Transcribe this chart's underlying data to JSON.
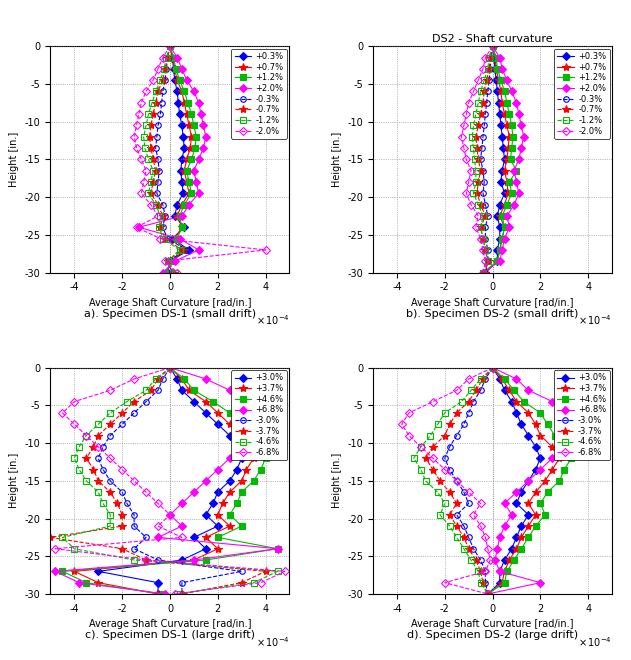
{
  "title_b": "DS2 - Shaft curvature",
  "xlabel": "Average Shaft Curvature [rad/in.]",
  "ylabel": "Height [in.]",
  "xlim": [
    -5,
    5
  ],
  "ylim": [
    -30,
    0
  ],
  "xticks": [
    -4,
    -2,
    0,
    2,
    4
  ],
  "yticks": [
    0,
    -5,
    -10,
    -15,
    -20,
    -25,
    -30
  ],
  "xscale_label": "x 10⁻⁴",
  "captions": [
    "a). Specimen DS-1 (small drift)",
    "b). Specimen DS-2 (small drift)",
    "c). Specimen DS-1 (large drift)",
    "d). Specimen DS-2 (large drift)"
  ],
  "colors": {
    "blue_filled": "#0000FF",
    "red_filled": "#FF0000",
    "green_filled": "#00CC00",
    "magenta_filled": "#FF00FF",
    "blue_open": "#0000FF",
    "red_open": "#FF0000",
    "green_open": "#00CC00",
    "magenta_open": "#FF00FF"
  },
  "small_drift_legends": [
    "+0.3%",
    "+0.7%",
    "+1.2%",
    "+2.0%",
    "-0.3%",
    "-0.7%",
    "-1.2%",
    "-2.0%"
  ],
  "large_drift_legends": [
    "+3.0%",
    "+3.7%",
    "+4.6%",
    "+6.8%",
    "-3.0%",
    "-3.7%",
    "-4.6%",
    "-6.8%"
  ],
  "DS1_small": {
    "heights": [
      0,
      -1.5,
      -3,
      -4.5,
      -6,
      -7.5,
      -9,
      -10.5,
      -12,
      -13.5,
      -15,
      -16.5,
      -18,
      -19.5,
      -21,
      -22.5,
      -24,
      -25.5,
      -27,
      -28.5,
      -30
    ],
    "p03": [
      0,
      0.1,
      0.15,
      0.2,
      0.3,
      0.35,
      0.4,
      0.5,
      0.55,
      0.6,
      0.5,
      0.45,
      0.5,
      0.55,
      0.3,
      0.2,
      0.6,
      0.1,
      0.8,
      0.0,
      -0.1
    ],
    "p07": [
      0,
      0.1,
      0.2,
      0.3,
      0.5,
      0.6,
      0.7,
      0.8,
      0.9,
      0.85,
      0.7,
      0.6,
      0.7,
      0.8,
      0.5,
      0.3,
      0.5,
      0.2,
      0.6,
      0.1,
      -0.15
    ],
    "p12": [
      0,
      0.15,
      0.25,
      0.4,
      0.6,
      0.75,
      0.9,
      1.0,
      1.1,
      1.05,
      0.9,
      0.7,
      0.8,
      0.9,
      0.6,
      0.4,
      0.5,
      0.3,
      0.5,
      0.1,
      -0.2
    ],
    "p20": [
      0,
      0.3,
      0.5,
      0.7,
      1.0,
      1.2,
      1.3,
      1.4,
      1.5,
      1.4,
      1.2,
      1.0,
      1.1,
      1.2,
      0.8,
      0.5,
      -1.3,
      0.4,
      1.2,
      0.2,
      -0.3
    ],
    "m03": [
      0,
      -0.1,
      -0.15,
      -0.2,
      -0.3,
      -0.35,
      -0.4,
      -0.5,
      -0.55,
      -0.6,
      -0.5,
      -0.45,
      -0.5,
      -0.55,
      -0.3,
      -0.2,
      -0.3,
      -0.1,
      0.7,
      -0.1,
      0.1
    ],
    "m07": [
      0,
      -0.1,
      -0.2,
      -0.3,
      -0.5,
      -0.6,
      -0.7,
      -0.8,
      -0.85,
      -0.8,
      -0.7,
      -0.6,
      -0.7,
      -0.8,
      -0.5,
      -0.3,
      -0.4,
      -0.2,
      0.5,
      -0.1,
      0.15
    ],
    "m12": [
      0,
      -0.15,
      -0.25,
      -0.4,
      -0.6,
      -0.75,
      -0.9,
      -1.0,
      -1.1,
      -1.05,
      -0.9,
      -0.7,
      -0.8,
      -0.9,
      -0.6,
      -0.4,
      -0.45,
      -0.3,
      0.4,
      -0.1,
      0.2
    ],
    "m20": [
      0,
      -0.3,
      -0.5,
      -0.7,
      -1.0,
      -1.2,
      -1.3,
      -1.4,
      -1.5,
      -1.4,
      -1.2,
      -1.0,
      -1.1,
      -1.2,
      -0.8,
      -0.5,
      -1.4,
      -0.4,
      4.0,
      -0.2,
      0.3
    ]
  },
  "DS2_small": {
    "heights": [
      0,
      -1.5,
      -3,
      -4.5,
      -6,
      -7.5,
      -9,
      -10.5,
      -12,
      -13.5,
      -15,
      -16.5,
      -18,
      -19.5,
      -21,
      -22.5,
      -24,
      -25.5,
      -27,
      -28.5,
      -30
    ],
    "p03": [
      0,
      0.05,
      0.1,
      0.15,
      0.2,
      0.25,
      0.3,
      0.35,
      0.4,
      0.45,
      0.5,
      0.4,
      0.35,
      0.5,
      0.3,
      0.2,
      0.3,
      0.3,
      0.2,
      0.2,
      -0.3
    ],
    "p07": [
      0,
      0.1,
      0.15,
      0.25,
      0.35,
      0.4,
      0.5,
      0.6,
      0.7,
      0.65,
      0.6,
      0.5,
      0.6,
      0.65,
      0.5,
      0.3,
      0.5,
      0.4,
      0.3,
      0.2,
      -0.3
    ],
    "p12": [
      0,
      0.15,
      0.2,
      0.35,
      0.5,
      0.6,
      0.7,
      0.8,
      0.85,
      0.8,
      0.75,
      1.0,
      0.7,
      0.8,
      0.6,
      0.4,
      0.5,
      0.4,
      0.3,
      0.2,
      -0.4
    ],
    "p20": [
      0,
      0.3,
      0.4,
      0.6,
      0.8,
      1.0,
      1.1,
      1.2,
      1.3,
      1.2,
      1.1,
      0.9,
      1.0,
      1.1,
      0.9,
      0.6,
      0.7,
      0.5,
      0.4,
      0.3,
      -0.4
    ],
    "m03": [
      0,
      -0.05,
      -0.1,
      -0.15,
      -0.2,
      -0.25,
      -0.3,
      -0.35,
      -0.4,
      -0.45,
      -0.5,
      -0.4,
      -0.35,
      -0.4,
      -0.3,
      -0.2,
      -0.3,
      -0.3,
      -0.2,
      -0.2,
      -0.3
    ],
    "m07": [
      0,
      -0.1,
      -0.15,
      -0.25,
      -0.35,
      -0.4,
      -0.5,
      -0.6,
      -0.7,
      -0.65,
      -0.6,
      -0.5,
      -0.6,
      -0.65,
      -0.5,
      -0.3,
      -0.5,
      -0.4,
      -0.3,
      -0.2,
      -0.3
    ],
    "m12": [
      0,
      -0.15,
      -0.2,
      -0.35,
      -0.5,
      -0.6,
      -0.7,
      -0.8,
      -0.85,
      -0.8,
      -0.75,
      -0.7,
      -0.7,
      -0.8,
      -0.6,
      -0.4,
      -0.5,
      -0.4,
      -0.3,
      -0.2,
      -0.4
    ],
    "m20": [
      0,
      -0.3,
      -0.4,
      -0.6,
      -0.8,
      -1.0,
      -1.1,
      -1.2,
      -1.3,
      -1.2,
      -1.1,
      -0.9,
      -1.0,
      -1.1,
      -0.9,
      -0.6,
      -0.7,
      -0.5,
      -0.4,
      -0.3,
      -0.4
    ]
  },
  "DS1_large": {
    "heights": [
      0,
      -1.5,
      -3,
      -4.5,
      -6,
      -7.5,
      -9,
      -10.5,
      -12,
      -13.5,
      -15,
      -16.5,
      -18,
      -19.5,
      -21,
      -22.5,
      -24,
      -25.5,
      -27,
      -28.5,
      -30
    ],
    "p30": [
      0,
      0.3,
      0.5,
      1.0,
      1.5,
      2.0,
      2.5,
      2.8,
      3.0,
      2.8,
      2.5,
      2.0,
      1.8,
      1.5,
      2.0,
      1.0,
      1.5,
      0.5,
      -3.0,
      -0.5,
      -0.5
    ],
    "p37": [
      0,
      0.5,
      0.8,
      1.5,
      2.0,
      2.5,
      3.0,
      3.2,
      3.5,
      3.2,
      3.0,
      2.5,
      2.2,
      2.0,
      2.5,
      1.5,
      2.0,
      1.0,
      -4.0,
      -3.0,
      -0.5
    ],
    "p46": [
      0,
      0.6,
      1.0,
      1.8,
      2.5,
      3.0,
      3.5,
      3.8,
      4.0,
      3.8,
      3.5,
      3.0,
      2.8,
      2.5,
      3.0,
      2.0,
      4.5,
      1.5,
      -4.5,
      -3.5,
      -0.3
    ],
    "p68": [
      0,
      1.5,
      2.5,
      4.0,
      4.5,
      4.0,
      3.5,
      3.0,
      2.5,
      2.0,
      1.5,
      1.0,
      0.5,
      0.0,
      0.5,
      -0.5,
      4.5,
      1.0,
      -4.8,
      -3.8,
      -0.2
    ],
    "m30": [
      0,
      -0.3,
      -0.5,
      -1.0,
      -1.5,
      -2.0,
      -2.5,
      -2.8,
      -3.0,
      -2.8,
      -2.5,
      -2.0,
      -1.8,
      -1.5,
      -1.5,
      -1.0,
      -1.5,
      -0.5,
      3.0,
      0.5,
      0.5
    ],
    "m37": [
      0,
      -0.5,
      -0.8,
      -1.5,
      -2.0,
      -2.5,
      -3.0,
      -3.2,
      -3.5,
      -3.2,
      -3.0,
      -2.5,
      -2.2,
      -2.0,
      -2.0,
      -5.0,
      -2.0,
      -1.0,
      4.0,
      3.0,
      0.5
    ],
    "m46": [
      0,
      -0.6,
      -1.0,
      -1.8,
      -2.5,
      -3.0,
      -3.5,
      -3.8,
      -4.0,
      -3.8,
      -3.5,
      -3.0,
      -2.8,
      -2.5,
      -2.5,
      -4.5,
      -4.0,
      -1.5,
      4.5,
      3.5,
      0.3
    ],
    "m68": [
      0,
      -1.5,
      -2.5,
      -4.0,
      -4.5,
      -4.0,
      -3.5,
      -3.0,
      -2.5,
      -2.0,
      -1.5,
      -1.0,
      -0.5,
      0.0,
      -0.5,
      0.5,
      -4.8,
      -1.0,
      4.8,
      3.8,
      0.2
    ]
  },
  "DS2_large": {
    "heights": [
      0,
      -1.5,
      -3,
      -4.5,
      -6,
      -7.5,
      -9,
      -10.5,
      -12,
      -13.5,
      -15,
      -16.5,
      -18,
      -19.5,
      -21,
      -22.5,
      -24,
      -25.5,
      -27,
      -28.5,
      -30
    ],
    "p30": [
      0,
      0.3,
      0.5,
      0.8,
      1.0,
      1.2,
      1.5,
      1.8,
      2.0,
      1.8,
      1.5,
      1.2,
      1.0,
      1.5,
      1.2,
      1.0,
      0.8,
      0.5,
      0.3,
      0.3,
      -0.2
    ],
    "p37": [
      0,
      0.4,
      0.7,
      1.0,
      1.5,
      1.8,
      2.0,
      2.5,
      2.8,
      2.5,
      2.2,
      1.8,
      1.5,
      1.8,
      1.5,
      1.2,
      1.0,
      0.7,
      0.5,
      0.4,
      -0.2
    ],
    "p46": [
      0,
      0.5,
      0.9,
      1.3,
      2.0,
      2.3,
      2.6,
      3.0,
      3.3,
      3.0,
      2.8,
      2.3,
      2.0,
      2.2,
      1.8,
      1.5,
      1.2,
      0.9,
      0.6,
      0.5,
      -0.2
    ],
    "p68": [
      0,
      1.0,
      1.5,
      2.5,
      3.5,
      3.8,
      3.5,
      3.0,
      2.5,
      2.0,
      1.5,
      1.0,
      0.5,
      0.8,
      0.5,
      0.3,
      0.2,
      0.1,
      0.3,
      2.0,
      -0.2
    ],
    "m30": [
      0,
      -0.3,
      -0.5,
      -0.8,
      -1.0,
      -1.2,
      -1.5,
      -1.8,
      -2.0,
      -1.8,
      -1.5,
      -1.2,
      -1.0,
      -1.5,
      -1.2,
      -1.0,
      -0.8,
      -0.5,
      -0.3,
      -0.3,
      -0.2
    ],
    "m37": [
      0,
      -0.4,
      -0.7,
      -1.0,
      -1.5,
      -1.8,
      -2.0,
      -2.5,
      -2.8,
      -2.5,
      -2.2,
      -1.8,
      -1.5,
      -1.8,
      -1.5,
      -1.2,
      -1.0,
      -0.7,
      -0.5,
      -0.4,
      -0.2
    ],
    "m46": [
      0,
      -0.5,
      -0.9,
      -1.3,
      -2.0,
      -2.3,
      -2.6,
      -3.0,
      -3.3,
      -3.0,
      -2.8,
      -2.3,
      -2.0,
      -2.2,
      -1.8,
      -1.5,
      -1.2,
      -0.9,
      -0.6,
      -0.5,
      -0.2
    ],
    "m68": [
      0,
      -1.0,
      -1.5,
      -2.5,
      -3.5,
      -3.8,
      -3.5,
      -3.0,
      -2.5,
      -2.0,
      -1.5,
      -1.0,
      -0.5,
      -0.8,
      -0.5,
      -0.3,
      -0.2,
      -0.1,
      -0.3,
      -2.0,
      -0.2
    ]
  }
}
